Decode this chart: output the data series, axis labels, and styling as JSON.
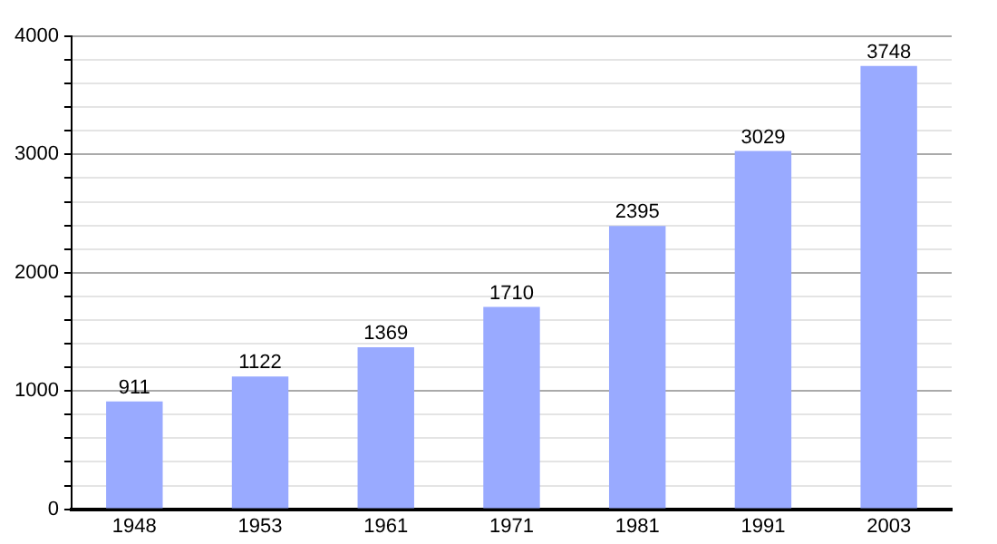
{
  "chart_data": {
    "type": "bar",
    "categories": [
      "1948",
      "1953",
      "1961",
      "1971",
      "1981",
      "1991",
      "2003"
    ],
    "values": [
      911,
      1122,
      1369,
      1710,
      2395,
      3029,
      3748
    ],
    "color": "#99aaff",
    "data_labels": true,
    "ylim": [
      0,
      4000
    ],
    "yticks": [
      0,
      {
        "value": 200,
        "label": null
      },
      {
        "value": 400,
        "label": null
      },
      {
        "value": 600,
        "label": null
      },
      {
        "value": 800,
        "label": null
      },
      1000,
      {
        "value": 1200,
        "label": null
      },
      {
        "value": 1400,
        "label": null
      },
      {
        "value": 1600,
        "label": null
      },
      {
        "value": 1800,
        "label": null
      },
      2000,
      {
        "value": 2200,
        "label": null
      },
      {
        "value": 2400,
        "label": null
      },
      {
        "value": 2600,
        "label": null
      },
      {
        "value": 2800,
        "label": null
      },
      3000,
      {
        "value": 3200,
        "label": null
      },
      {
        "value": 3400,
        "label": null
      },
      {
        "value": 3600,
        "label": null
      },
      {
        "value": 3800,
        "label": null
      },
      4000
    ],
    "grid": "y",
    "legend": false
  }
}
